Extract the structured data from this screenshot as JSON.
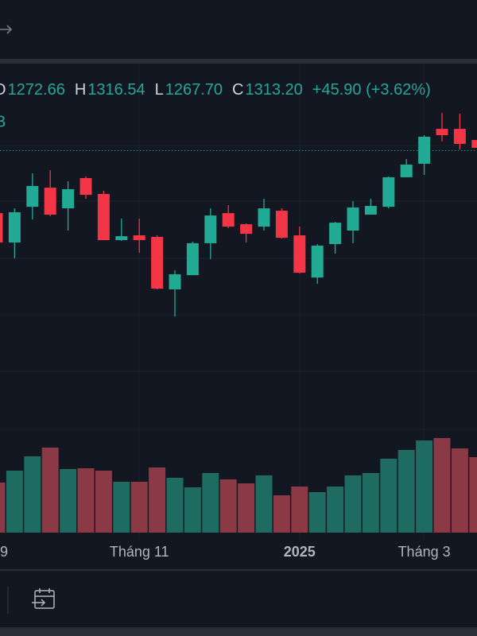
{
  "chart_data": {
    "type": "candlestick",
    "ohlc": [
      {
        "key": "O",
        "value": 1272.66,
        "label": "1272.66"
      },
      {
        "key": "H",
        "value": 1316.54,
        "label": "1316.54"
      },
      {
        "key": "L",
        "value": 1267.7,
        "label": "1267.70"
      },
      {
        "key": "C",
        "value": 1313.2,
        "label": "1313.20"
      }
    ],
    "change": "+45.90 (+3.62%)",
    "sub_label": "B",
    "x_labels": [
      {
        "index": 0.4,
        "label": "9"
      },
      {
        "index": 8.0,
        "label": "Tháng 11"
      },
      {
        "index": 17.0,
        "label": "2025",
        "bold": true
      },
      {
        "index": 24.0,
        "label": "Tháng 3"
      }
    ],
    "open": [
      1268.7,
      1247.8,
      1273.2,
      1286.8,
      1272.1,
      1293.6,
      1282.3,
      1249.5,
      1252.9,
      1251.8,
      1214.5,
      1224.6,
      1247.3,
      1268.7,
      1260.8,
      1259.1,
      1270.4,
      1252.9,
      1222.9,
      1246.7,
      1256.3,
      1267.6,
      1273.2,
      1294.2,
      1303.8,
      1328.6,
      1328.6,
      1320.7
    ],
    "high": [
      1270.4,
      1272.1,
      1297.0,
      1299.2,
      1291.3,
      1294.7,
      1284.6,
      1264.8,
      1264.8,
      1252.9,
      1228.0,
      1248.4,
      1272.1,
      1274.4,
      1261.4,
      1278.9,
      1272.1,
      1259.1,
      1246.7,
      1262.5,
      1277.2,
      1278.9,
      1294.7,
      1307.2,
      1324.1,
      1339.9,
      1339.4,
      1324.1
    ],
    "low": [
      1245.0,
      1236.5,
      1264.2,
      1266.5,
      1256.3,
      1278.9,
      1249.5,
      1248.9,
      1240.5,
      1214.5,
      1195.2,
      1224.6,
      1236.0,
      1258.0,
      1247.8,
      1256.3,
      1250.6,
      1225.8,
      1218.4,
      1239.9,
      1247.3,
      1268.7,
      1272.1,
      1294.2,
      1295.9,
      1319.6,
      1313.9,
      1312.8
    ],
    "close": [
      1247.8,
      1269.3,
      1288.0,
      1267.6,
      1285.7,
      1281.7,
      1249.5,
      1252.3,
      1249.5,
      1215.0,
      1225.2,
      1247.3,
      1267.0,
      1259.1,
      1254.0,
      1272.1,
      1251.2,
      1226.3,
      1245.6,
      1261.9,
      1272.7,
      1273.8,
      1294.2,
      1303.2,
      1323.0,
      1324.1,
      1317.9,
      1315.1
    ],
    "volume": [
      63,
      78,
      96,
      107,
      80,
      81,
      78,
      64,
      64,
      82,
      69,
      57,
      75,
      67,
      62,
      72,
      47,
      58,
      51,
      58,
      72,
      75,
      93,
      104,
      116,
      119,
      106,
      95
    ],
    "ylim": [
      1115,
      1375
    ],
    "volume_lim": [
      0,
      130
    ],
    "up_color": "#22ab94",
    "down_color": "#f23645",
    "volume_up_color": "#1e6b61",
    "volume_down_color": "#8b3a45",
    "text_color": "#26a69a",
    "label_color": "#d1d4dc"
  }
}
